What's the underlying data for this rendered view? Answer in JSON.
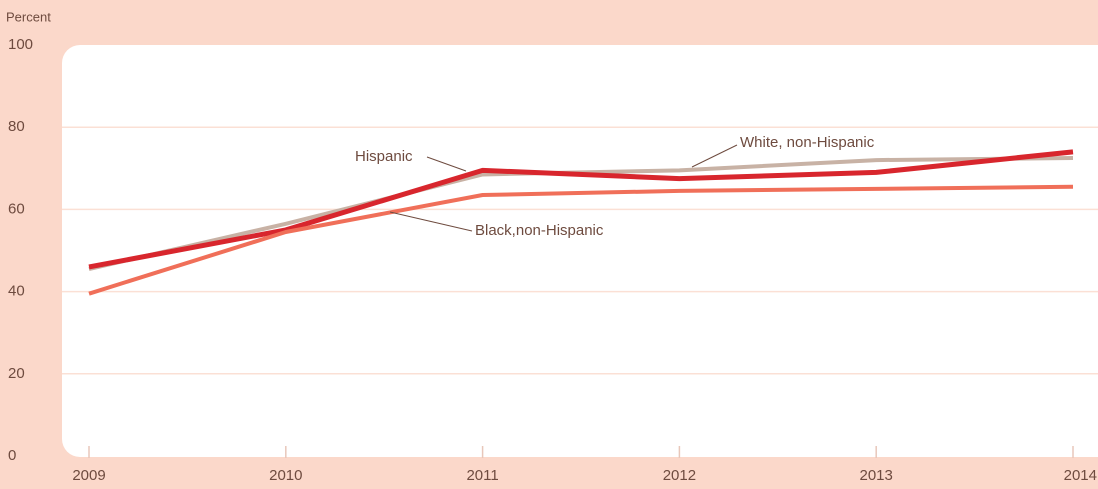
{
  "chart_data": {
    "type": "line",
    "y_label": "Percent",
    "categories": [
      "2009",
      "2010",
      "2011",
      "2012",
      "2013",
      "2014"
    ],
    "series": [
      {
        "name": "White, non-Hispanic",
        "color": "#c8b2a5",
        "values": [
          45.5,
          56.5,
          68.5,
          69.5,
          72,
          72.5
        ]
      },
      {
        "name": "Hispanic",
        "color": "#d8262d",
        "values": [
          46,
          55,
          69.5,
          67.5,
          69,
          74
        ]
      },
      {
        "name": "Black,non-Hispanic",
        "color": "#f06f59",
        "values": [
          39.5,
          54.5,
          63.5,
          64.5,
          65,
          65.5
        ]
      }
    ],
    "ylim": [
      0,
      100
    ],
    "yticks": [
      0,
      20,
      40,
      60,
      80,
      100
    ],
    "grid": true
  }
}
